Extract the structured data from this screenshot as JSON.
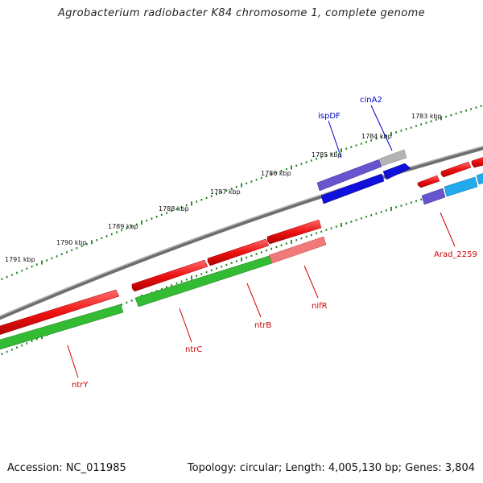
{
  "title": "Agrobacterium radiobacter K84 chromosome 1, complete genome",
  "footer": {
    "accession": "Accession: NC_011985",
    "summary": "Topology: circular; Length: 4,005,130 bp; Genes: 3,804"
  },
  "scale_labels": [
    "1783 kbp",
    "1784 kbp",
    "1785 kbp",
    "1786 kbp",
    "1787 kbp",
    "1788 kbp",
    "1789 kbp",
    "1790 kbp",
    "1791 kbp"
  ],
  "gene_labels": [
    {
      "name": "cinA2",
      "color": "#0000c8"
    },
    {
      "name": "ispDF",
      "color": "#0000c8"
    },
    {
      "name": "Arad_2259",
      "color": "#d00000"
    },
    {
      "name": "nifR",
      "color": "#d00000"
    },
    {
      "name": "ntrB",
      "color": "#d00000"
    },
    {
      "name": "ntrC",
      "color": "#d00000"
    },
    {
      "name": "ntrY",
      "color": "#d00000"
    }
  ],
  "colors": {
    "backbone": "#8a8a8a",
    "forward_gene": "#ee1111",
    "reverse_gene": "#33bb33",
    "blue_gene": "#1010dd",
    "purple_gene": "#6655cc",
    "grey_gene": "#b4b4b4",
    "cyan_gene": "#22aaee",
    "pink_gene": "#f07a7a",
    "tick_green": "#1e7d1e"
  }
}
